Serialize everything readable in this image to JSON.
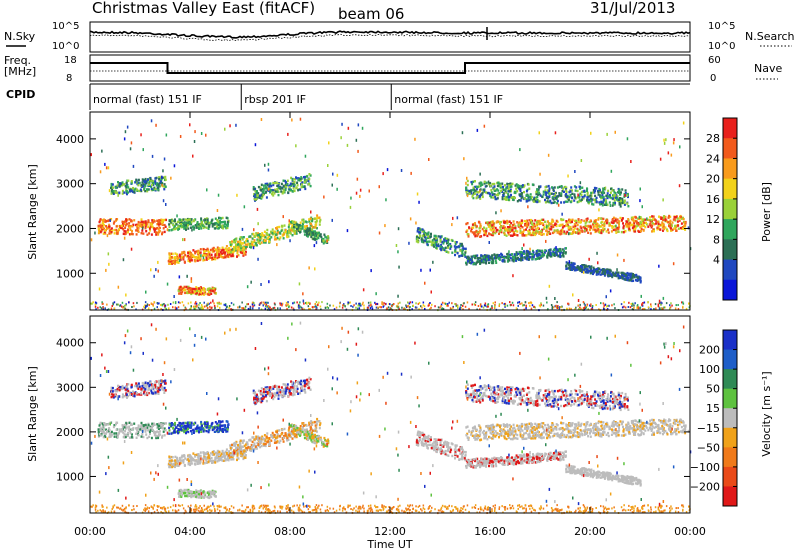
{
  "header": {
    "title": "Christmas Valley East (fitACF)",
    "beam": "beam 06",
    "date": "31/Jul/2013"
  },
  "chart_data": [
    {
      "type": "line",
      "name": "noise-panel",
      "ylabel_left": "N.Sky",
      "ylabel_right": "N.Search",
      "left_ticks": [
        "10^5",
        "10^0"
      ],
      "right_ticks": [
        "10^5",
        "10^0"
      ]
    },
    {
      "type": "line",
      "name": "frequency-panel",
      "ylabel_left": "Freq. [MHz]",
      "ylabel_right": "Nave",
      "left_ticks": [
        "18",
        "8"
      ],
      "right_ticks": [
        "60",
        "0"
      ],
      "freq_segments": [
        {
          "start_h": 0,
          "end_h": 3.1,
          "level": "high"
        },
        {
          "start_h": 3.1,
          "end_h": 15.0,
          "level": "low"
        },
        {
          "start_h": 15.0,
          "end_h": 24,
          "level": "high"
        }
      ]
    },
    {
      "type": "table",
      "name": "cpid-bar",
      "label": "CPID",
      "modes": [
        {
          "label": "normal (fast) 151 IF",
          "start_h": 0,
          "end_h": 6.05
        },
        {
          "label": "rbsp 201 IF",
          "start_h": 6.05,
          "end_h": 12.05
        },
        {
          "label": "normal (fast) 151 IF",
          "start_h": 12.05,
          "end_h": 24
        }
      ]
    },
    {
      "type": "heatmap",
      "name": "power-panel",
      "ylabel": "Slant Range [km]",
      "yticks": [
        1000,
        2000,
        3000,
        4000
      ],
      "ylim": [
        180,
        4600
      ],
      "colorbar": {
        "label": "Power [dB]",
        "ticks": [
          28,
          24,
          20,
          16,
          12,
          8,
          4
        ],
        "colors": [
          "#e8201c",
          "#f25a1c",
          "#f99b1c",
          "#f2d21a",
          "#9ad139",
          "#2fa65c",
          "#2c6f55",
          "#2048c0",
          "#0a16d8"
        ]
      }
    },
    {
      "type": "heatmap",
      "name": "velocity-panel",
      "ylabel": "Slant Range [km]",
      "yticks": [
        1000,
        2000,
        3000,
        4000
      ],
      "ylim": [
        180,
        4600
      ],
      "xlabel": "Time UT",
      "xticks": [
        "00:00",
        "04:00",
        "08:00",
        "12:00",
        "16:00",
        "20:00",
        "00:00"
      ],
      "colorbar": {
        "label": "Velocity [m s⁻¹]",
        "ticks": [
          "200",
          "100",
          "50",
          "15",
          "−15",
          "−50",
          "−100",
          "−200"
        ],
        "colors": [
          "#1a30c8",
          "#1e5ec8",
          "#2f8a55",
          "#5ec23f",
          "#bcbcbc",
          "#f0a21a",
          "#f07a1a",
          "#ea4a18",
          "#e01818"
        ]
      }
    }
  ]
}
